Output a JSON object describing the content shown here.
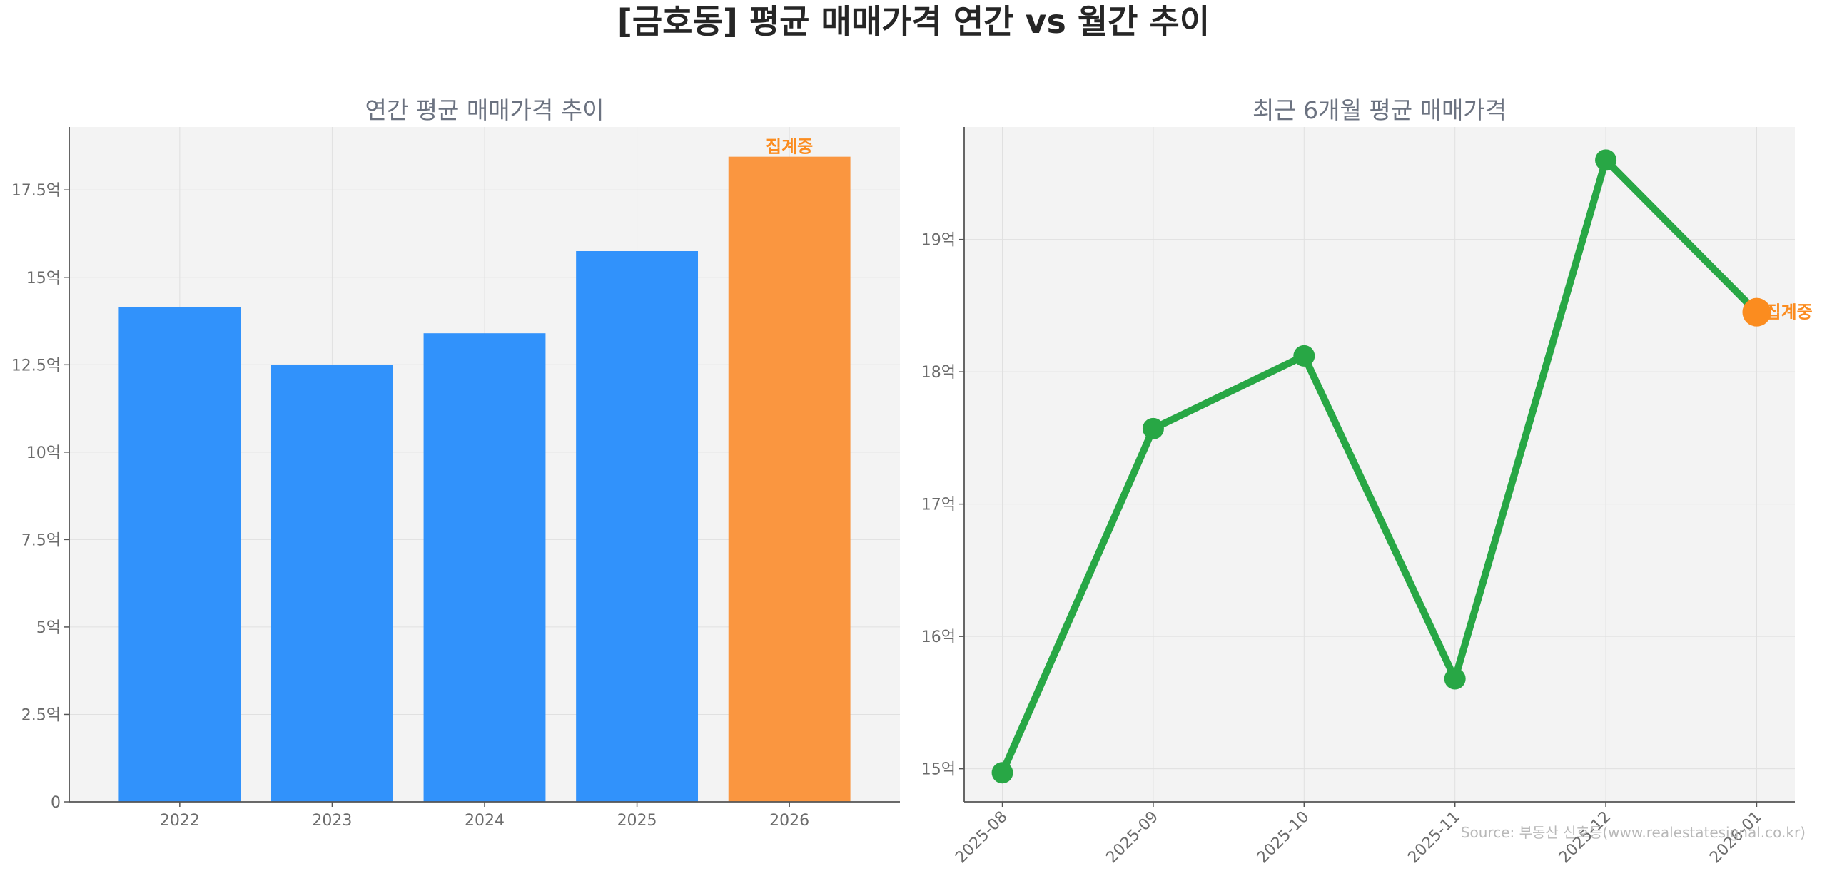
{
  "title": "[금호동] 평균 매매가격 연간 vs 월간 추이",
  "source": "Source: 부동산 신호등(www.realestatesignal.co.kr)",
  "colors": {
    "bar": "#3192fb",
    "bar_highlight": "#fa9640",
    "line": "#28a745",
    "marker_highlight": "#fb8c1f",
    "plot_bg": "#f3f3f3",
    "grid": "#e0e0e0"
  },
  "chart_data": [
    {
      "type": "bar",
      "title": "연간 평균 매매가격 추이",
      "categories": [
        "2022",
        "2023",
        "2024",
        "2025",
        "2026"
      ],
      "values": [
        14.15,
        12.5,
        13.4,
        15.75,
        18.45
      ],
      "highlight_index": 4,
      "highlight_label": "집계중",
      "ylim": [
        0,
        19.3
      ],
      "yticks": [
        0,
        2.5,
        5,
        7.5,
        10,
        12.5,
        15,
        17.5
      ],
      "ytick_labels": [
        "0",
        "2.5억",
        "5억",
        "7.5억",
        "10억",
        "12.5억",
        "15억",
        "17.5억"
      ],
      "grid": true
    },
    {
      "type": "line",
      "title": "최근 6개월 평균 매매가격",
      "x": [
        "2025-08",
        "2025-09",
        "2025-10",
        "2025-11",
        "2025-12",
        "2026-01"
      ],
      "values": [
        14.97,
        17.57,
        18.12,
        15.68,
        19.6,
        18.45
      ],
      "highlight_index": 5,
      "highlight_label": "집계중",
      "ylim": [
        14.75,
        19.85
      ],
      "yticks": [
        15,
        16,
        17,
        18,
        19
      ],
      "ytick_labels": [
        "15억",
        "16억",
        "17억",
        "18억",
        "19억"
      ],
      "grid": true
    }
  ]
}
